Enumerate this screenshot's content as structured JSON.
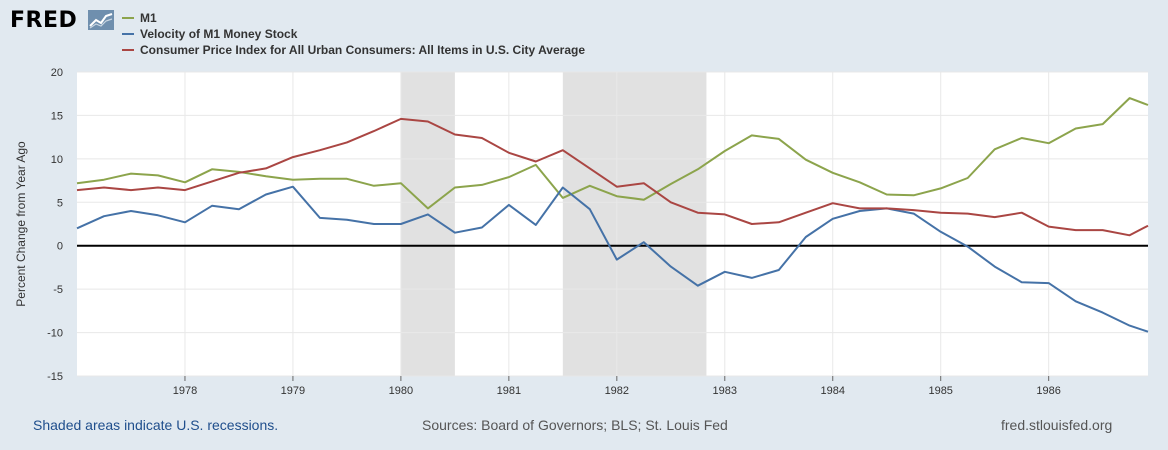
{
  "header": {
    "logo_text": "FRED",
    "logo_icon": "chart-line-icon"
  },
  "legend": [
    {
      "label": "M1",
      "color": "#8ca44c"
    },
    {
      "label": "Velocity of M1 Money Stock",
      "color": "#4572a7"
    },
    {
      "label": "Consumer Price Index for All Urban Consumers: All Items in U.S. City Average",
      "color": "#aa4643"
    }
  ],
  "footer": {
    "left": "Shaded areas indicate U.S. recessions.",
    "middle": "Sources: Board of Governors; BLS; St. Louis Fed",
    "right": "fred.stlouisfed.org"
  },
  "chart_data": {
    "type": "line",
    "title": "",
    "xlabel": "",
    "ylabel": "Percent Change from Year Ago",
    "xlim": [
      1977.0,
      1986.92
    ],
    "ylim": [
      -15,
      20
    ],
    "yticks": [
      -15,
      -10,
      -5,
      0,
      5,
      10,
      15,
      20
    ],
    "xticks": [
      1978,
      1979,
      1980,
      1981,
      1982,
      1983,
      1984,
      1985,
      1986
    ],
    "recessions": [
      [
        1980.0,
        1980.5
      ],
      [
        1981.5,
        1982.83
      ]
    ],
    "zero_line": true,
    "x": [
      1977.0,
      1977.25,
      1977.5,
      1977.75,
      1978.0,
      1978.25,
      1978.5,
      1978.75,
      1979.0,
      1979.25,
      1979.5,
      1979.75,
      1980.0,
      1980.25,
      1980.5,
      1980.75,
      1981.0,
      1981.25,
      1981.5,
      1981.75,
      1982.0,
      1982.25,
      1982.5,
      1982.75,
      1983.0,
      1983.25,
      1983.5,
      1983.75,
      1984.0,
      1984.25,
      1984.5,
      1984.75,
      1985.0,
      1985.25,
      1985.5,
      1985.75,
      1986.0,
      1986.25,
      1986.5,
      1986.75,
      1986.92
    ],
    "series": [
      {
        "name": "M1",
        "color": "#8ca44c",
        "values": [
          7.2,
          7.6,
          8.3,
          8.1,
          7.3,
          8.8,
          8.5,
          8.0,
          7.6,
          7.7,
          7.7,
          6.9,
          7.2,
          4.3,
          6.7,
          7.0,
          7.9,
          9.3,
          5.5,
          6.9,
          5.7,
          5.3,
          7.1,
          8.8,
          10.9,
          12.7,
          12.3,
          9.9,
          8.4,
          7.3,
          5.9,
          5.8,
          6.6,
          7.8,
          11.1,
          12.4,
          11.8,
          13.5,
          14.0,
          17.0,
          16.2
        ]
      },
      {
        "name": "Velocity of M1 Money Stock",
        "color": "#4572a7",
        "values": [
          2.0,
          3.4,
          4.0,
          3.5,
          2.7,
          4.6,
          4.2,
          5.9,
          6.8,
          3.2,
          3.0,
          2.5,
          2.5,
          3.6,
          1.5,
          2.1,
          4.7,
          2.4,
          6.7,
          4.2,
          -1.6,
          0.4,
          -2.4,
          -4.6,
          -3.0,
          -3.7,
          -2.8,
          1.0,
          3.1,
          4.0,
          4.3,
          3.7,
          1.6,
          -0.1,
          -2.4,
          -4.2,
          -4.3,
          -6.4,
          -7.7,
          -9.2,
          -9.9
        ]
      },
      {
        "name": "Consumer Price Index for All Urban Consumers: All Items in U.S. City Average",
        "color": "#aa4643",
        "values": [
          6.4,
          6.7,
          6.4,
          6.7,
          6.4,
          7.4,
          8.4,
          8.9,
          10.2,
          11.0,
          11.9,
          13.2,
          14.6,
          14.3,
          12.8,
          12.4,
          10.7,
          9.7,
          11.0,
          8.9,
          6.8,
          7.2,
          5.0,
          3.8,
          3.6,
          2.5,
          2.7,
          3.8,
          4.9,
          4.3,
          4.3,
          4.1,
          3.8,
          3.7,
          3.3,
          3.8,
          2.2,
          1.8,
          1.8,
          1.2,
          2.3
        ]
      }
    ]
  }
}
